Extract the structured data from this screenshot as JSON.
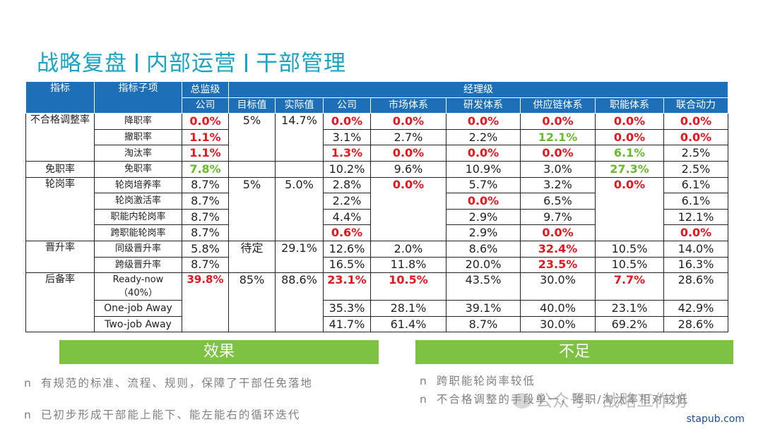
{
  "title": {
    "part1": "战略复盘",
    "part2": "内部运营",
    "part3": "干部管理"
  },
  "header": {
    "indicator": "指标",
    "sub_indicator": "指标子项",
    "general": "总监级",
    "manager": "经理级",
    "company": "公司",
    "target": "目标值",
    "actual": "实际值",
    "mgr_company": "公司",
    "market": "市场体系",
    "rd": "研发体系",
    "supply": "供应链体系",
    "function": "职能体系",
    "joint": "联合动力"
  },
  "groups": {
    "unqualified": "不合格调整率",
    "dismiss": "免职率",
    "rotation": "轮岗率",
    "promotion": "晋升率",
    "reserve": "后备率"
  },
  "rows": {
    "r1": {
      "sub": "降职率",
      "gen": "0.0%",
      "target": "5%",
      "actual": "14.7%",
      "c": "0.0%",
      "m": "0.0%",
      "rd": "0.0%",
      "s": "0.0%",
      "f": "0.0%",
      "j": "0.0%"
    },
    "r2": {
      "sub": "撤职率",
      "gen": "1.1%",
      "c": "3.1%",
      "m": "2.7%",
      "rd": "2.2%",
      "s": "12.1%",
      "f": "0.0%",
      "j": "0.0%"
    },
    "r3": {
      "sub": "淘汰率",
      "gen": "1.1%",
      "c": "1.3%",
      "m": "0.0%",
      "rd": "0.0%",
      "s": "0.0%",
      "f": "6.1%",
      "j": "2.5%"
    },
    "r4": {
      "sub": "免职率",
      "gen": "7.8%",
      "c": "10.2%",
      "m": "9.6%",
      "rd": "10.9%",
      "s": "3.0%",
      "f": "27.3%",
      "j": "2.5%"
    },
    "r5": {
      "sub": "轮岗培养率",
      "gen": "8.7%",
      "target": "5%",
      "actual": "5.0%",
      "c": "2.8%",
      "m": "0.0%",
      "rd": "5.7%",
      "s": "3.2%",
      "f": "0.0%",
      "j": "6.1%"
    },
    "r6": {
      "sub": "轮岗激活率",
      "gen": "8.7%",
      "c": "2.2%",
      "rd": "0.0%",
      "s": "6.5%",
      "j": "6.1%"
    },
    "r7": {
      "sub": "职能内轮岗率",
      "gen": "8.7%",
      "c": "4.4%",
      "rd": "2.9%",
      "s": "9.7%",
      "j": "12.1%"
    },
    "r8": {
      "sub": "跨职能轮岗率",
      "gen": "8.7%",
      "c": "0.6%",
      "rd": "2.9%",
      "s": "0.0%",
      "j": "0.0%"
    },
    "r9": {
      "sub": "同级晋升率",
      "gen": "5.8%",
      "target": "待定",
      "actual": "29.1%",
      "c": "12.6%",
      "m": "2.0%",
      "rd": "8.6%",
      "s": "32.4%",
      "f": "10.5%",
      "j": "14.0%"
    },
    "r10": {
      "sub": "跨级晋升率",
      "gen": "8.7%",
      "c": "16.5%",
      "m": "11.8%",
      "rd": "20.0%",
      "s": "23.5%",
      "f": "10.5%",
      "j": "16.3%"
    },
    "r11": {
      "sub": "Ready-now",
      "sub2": "（40%）",
      "gen": "39.8%",
      "target": "85%",
      "actual": "88.6%",
      "c": "23.1%",
      "m": "10.5%",
      "rd": "43.5%",
      "s": "30.0%",
      "f": "7.7%",
      "j": "28.6%"
    },
    "r12": {
      "sub": "One-job Away",
      "c": "35.3%",
      "m": "28.1%",
      "rd": "39.1%",
      "s": "40.0%",
      "f": "23.1%",
      "j": "42.9%"
    },
    "r13": {
      "sub": "Two-job Away",
      "c": "41.7%",
      "m": "61.4%",
      "rd": "8.7%",
      "s": "30.0%",
      "f": "69.2%",
      "j": "28.6%"
    }
  },
  "effect": {
    "title": "效果",
    "bullet": "n",
    "item1": "有规范的标准、流程、规则，保障了干部任免落地",
    "item2": "已初步形成干部能上能下、能左能右的循环迭代"
  },
  "shortfall": {
    "title": "不足",
    "bullet": "n",
    "item1": "跨职能轮岗率较低",
    "item2": "不合格调整的手段单一，降职/淘汰率相对较低"
  },
  "watermark": "公众号 · 战略工作坊",
  "site": "stapub.com",
  "colors": {
    "title": "#1aa3c4",
    "header_bg": "#1d6fb8",
    "bar": "#7dc242",
    "red": "#e5161e",
    "green": "#66bb2e"
  }
}
